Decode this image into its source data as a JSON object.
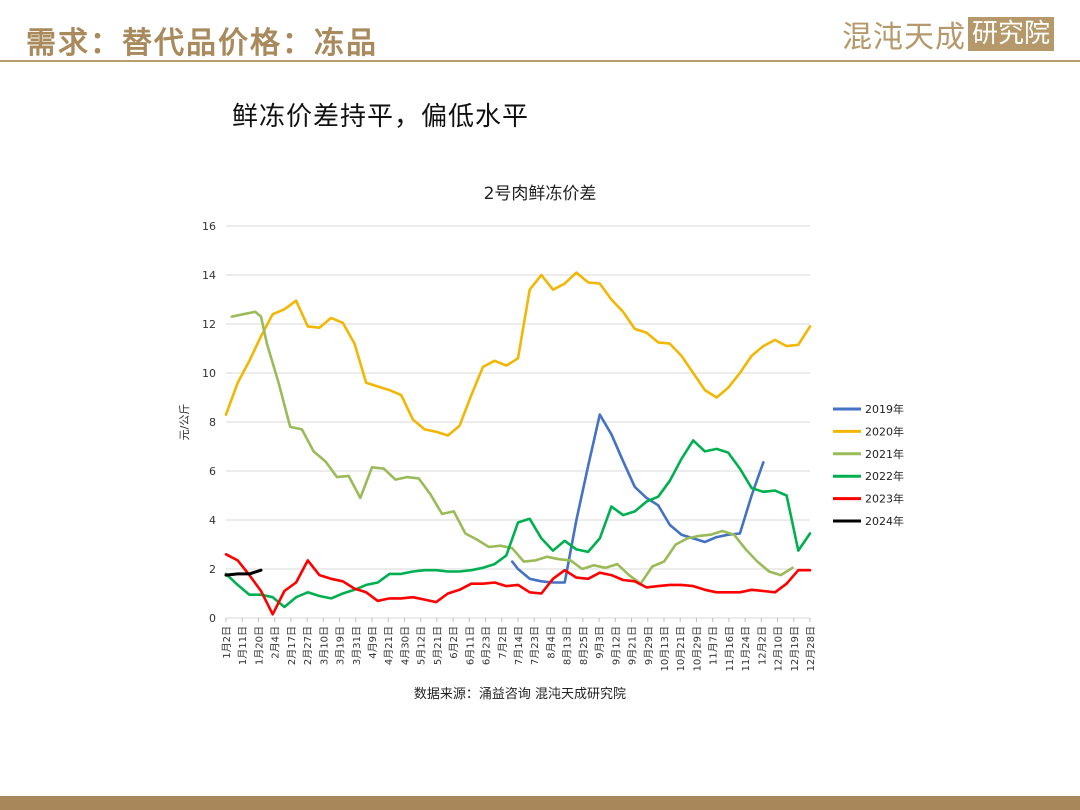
{
  "header": {
    "title": "需求：替代品价格：冻品",
    "brand_text": "混沌天成",
    "brand_box": "研究院"
  },
  "subtitle": "鲜冻价差持平，偏低水平",
  "source_note": "数据来源：涌益咨询  混沌天成研究院",
  "colors": {
    "gold": "#a88a5c",
    "header_line": "#b89d6d",
    "footer": "#a8875a"
  },
  "chart_data": {
    "type": "line",
    "title": "2号肉鲜冻价差",
    "ylabel": "元/公斤",
    "xlabel": "",
    "ylim": [
      0,
      16
    ],
    "yticks": [
      0,
      2,
      4,
      6,
      8,
      10,
      12,
      14,
      16
    ],
    "grid": true,
    "legend_position": "right",
    "x": [
      "1月2日",
      "1月11日",
      "1月20日",
      "2月4日",
      "2月17日",
      "2月27日",
      "3月10日",
      "3月19日",
      "3月31日",
      "4月9日",
      "4月21日",
      "4月30日",
      "5月12日",
      "5月21日",
      "6月2日",
      "6月11日",
      "6月23日",
      "7月2日",
      "7月14日",
      "7月23日",
      "8月4日",
      "8月13日",
      "8月25日",
      "9月3日",
      "9月12日",
      "9月21日",
      "9月29日",
      "10月13日",
      "10月21日",
      "10月29日",
      "11月7日",
      "11月16日",
      "11月24日",
      "12月2日",
      "12月10日",
      "12月19日",
      "12月28日"
    ],
    "series": [
      {
        "name": "2019年",
        "color": "#4472c4",
        "points": [
          [
            24.5,
            2.3
          ],
          [
            25,
            2.0
          ],
          [
            26,
            1.6
          ],
          [
            27,
            1.5
          ],
          [
            28,
            1.45
          ],
          [
            29,
            1.45
          ],
          [
            30,
            4.0
          ],
          [
            31,
            6.2
          ],
          [
            32,
            8.3
          ],
          [
            33,
            7.5
          ],
          [
            34,
            6.4
          ],
          [
            35,
            5.35
          ],
          [
            36,
            4.9
          ],
          [
            37,
            4.6
          ],
          [
            38,
            3.8
          ],
          [
            39,
            3.4
          ],
          [
            40,
            3.25
          ],
          [
            41,
            3.1
          ],
          [
            42,
            3.3
          ],
          [
            43,
            3.4
          ],
          [
            44,
            3.45
          ],
          [
            45,
            5.0
          ],
          [
            46,
            6.35
          ]
        ]
      },
      {
        "name": "2020年",
        "color": "#f2b705",
        "points": [
          [
            0,
            8.3
          ],
          [
            1,
            9.6
          ],
          [
            2,
            10.5
          ],
          [
            3,
            11.5
          ],
          [
            4,
            12.4
          ],
          [
            5,
            12.6
          ],
          [
            6,
            12.95
          ],
          [
            7,
            11.9
          ],
          [
            8,
            11.85
          ],
          [
            9,
            12.25
          ],
          [
            10,
            12.05
          ],
          [
            11,
            11.2
          ],
          [
            12,
            9.6
          ],
          [
            13,
            9.45
          ],
          [
            14,
            9.3
          ],
          [
            15,
            9.1
          ],
          [
            16,
            8.1
          ],
          [
            17,
            7.7
          ],
          [
            18,
            7.6
          ],
          [
            19,
            7.45
          ],
          [
            20,
            7.85
          ],
          [
            21,
            9.1
          ],
          [
            22,
            10.25
          ],
          [
            23,
            10.5
          ],
          [
            24,
            10.3
          ],
          [
            25,
            10.6
          ],
          [
            26,
            13.4
          ],
          [
            27,
            14.0
          ],
          [
            28,
            13.4
          ],
          [
            29,
            13.65
          ],
          [
            30,
            14.1
          ],
          [
            31,
            13.7
          ],
          [
            32,
            13.65
          ],
          [
            33,
            13.0
          ],
          [
            34,
            12.5
          ],
          [
            35,
            11.8
          ],
          [
            36,
            11.65
          ],
          [
            37,
            11.25
          ],
          [
            38,
            11.2
          ],
          [
            39,
            10.7
          ],
          [
            40,
            10.0
          ],
          [
            41,
            9.3
          ],
          [
            42,
            9.0
          ],
          [
            43,
            9.4
          ],
          [
            44,
            10.0
          ],
          [
            45,
            10.7
          ],
          [
            46,
            11.1
          ],
          [
            47,
            11.35
          ],
          [
            48,
            11.1
          ],
          [
            49,
            11.15
          ],
          [
            50,
            11.9
          ]
        ]
      },
      {
        "name": "2021年",
        "color": "#9bbb59",
        "points": [
          [
            0.5,
            12.3
          ],
          [
            1.5,
            12.4
          ],
          [
            2.5,
            12.5
          ],
          [
            3,
            12.3
          ],
          [
            3.5,
            11.2
          ],
          [
            4.5,
            9.6
          ],
          [
            5.5,
            7.8
          ],
          [
            6.5,
            7.7
          ],
          [
            7.5,
            6.8
          ],
          [
            8.5,
            6.4
          ],
          [
            9.5,
            5.75
          ],
          [
            10.5,
            5.8
          ],
          [
            11.5,
            4.9
          ],
          [
            12.5,
            6.15
          ],
          [
            13.5,
            6.1
          ],
          [
            14.5,
            5.65
          ],
          [
            15.5,
            5.75
          ],
          [
            16.5,
            5.7
          ],
          [
            17.5,
            5.05
          ],
          [
            18.5,
            4.25
          ],
          [
            19.5,
            4.35
          ],
          [
            20.5,
            3.45
          ],
          [
            21.5,
            3.2
          ],
          [
            22.5,
            2.9
          ],
          [
            23.5,
            2.95
          ],
          [
            24.5,
            2.85
          ],
          [
            25.5,
            2.3
          ],
          [
            26.5,
            2.35
          ],
          [
            27.5,
            2.5
          ],
          [
            28.5,
            2.4
          ],
          [
            29.5,
            2.35
          ],
          [
            30.5,
            2.0
          ],
          [
            31.5,
            2.15
          ],
          [
            32.5,
            2.05
          ],
          [
            33.5,
            2.2
          ],
          [
            34.5,
            1.75
          ],
          [
            35.5,
            1.4
          ],
          [
            36.5,
            2.1
          ],
          [
            37.5,
            2.3
          ],
          [
            38.5,
            3.0
          ],
          [
            39.5,
            3.25
          ],
          [
            40.5,
            3.35
          ],
          [
            41.5,
            3.4
          ],
          [
            42.5,
            3.55
          ],
          [
            43.5,
            3.4
          ],
          [
            44.5,
            2.8
          ],
          [
            45.5,
            2.3
          ],
          [
            46.5,
            1.9
          ],
          [
            47.5,
            1.75
          ],
          [
            48.5,
            2.05
          ]
        ]
      },
      {
        "name": "2022年",
        "color": "#00b050",
        "points": [
          [
            0,
            1.8
          ],
          [
            1,
            1.35
          ],
          [
            2,
            0.95
          ],
          [
            3,
            0.95
          ],
          [
            4,
            0.85
          ],
          [
            5,
            0.45
          ],
          [
            6,
            0.85
          ],
          [
            7,
            1.05
          ],
          [
            8,
            0.9
          ],
          [
            9,
            0.8
          ],
          [
            10,
            1.0
          ],
          [
            11,
            1.15
          ],
          [
            12,
            1.35
          ],
          [
            13,
            1.45
          ],
          [
            14,
            1.8
          ],
          [
            15,
            1.8
          ],
          [
            16,
            1.9
          ],
          [
            17,
            1.95
          ],
          [
            18,
            1.95
          ],
          [
            19,
            1.9
          ],
          [
            20,
            1.9
          ],
          [
            21,
            1.95
          ],
          [
            22,
            2.05
          ],
          [
            23,
            2.2
          ],
          [
            24,
            2.55
          ],
          [
            25,
            3.9
          ],
          [
            26,
            4.05
          ],
          [
            27,
            3.25
          ],
          [
            28,
            2.75
          ],
          [
            29,
            3.15
          ],
          [
            30,
            2.8
          ],
          [
            31,
            2.7
          ],
          [
            32,
            3.25
          ],
          [
            33,
            4.55
          ],
          [
            34,
            4.2
          ],
          [
            35,
            4.35
          ],
          [
            36,
            4.75
          ],
          [
            37,
            4.95
          ],
          [
            38,
            5.6
          ],
          [
            39,
            6.5
          ],
          [
            40,
            7.25
          ],
          [
            41,
            6.8
          ],
          [
            42,
            6.9
          ],
          [
            43,
            6.75
          ],
          [
            44,
            6.1
          ],
          [
            45,
            5.3
          ],
          [
            46,
            5.15
          ],
          [
            47,
            5.2
          ],
          [
            48,
            5.0
          ],
          [
            49,
            2.75
          ],
          [
            50,
            3.45
          ]
        ]
      },
      {
        "name": "2023年",
        "color": "#ff0000",
        "points": [
          [
            0,
            2.6
          ],
          [
            1,
            2.35
          ],
          [
            2,
            1.75
          ],
          [
            3,
            1.1
          ],
          [
            4,
            0.15
          ],
          [
            5,
            1.1
          ],
          [
            6,
            1.45
          ],
          [
            7,
            2.35
          ],
          [
            8,
            1.75
          ],
          [
            9,
            1.6
          ],
          [
            10,
            1.5
          ],
          [
            11,
            1.2
          ],
          [
            12,
            1.05
          ],
          [
            13,
            0.7
          ],
          [
            14,
            0.8
          ],
          [
            15,
            0.8
          ],
          [
            16,
            0.85
          ],
          [
            17,
            0.75
          ],
          [
            18,
            0.65
          ],
          [
            19,
            1.0
          ],
          [
            20,
            1.15
          ],
          [
            21,
            1.4
          ],
          [
            22,
            1.4
          ],
          [
            23,
            1.45
          ],
          [
            24,
            1.3
          ],
          [
            25,
            1.35
          ],
          [
            26,
            1.05
          ],
          [
            27,
            1.0
          ],
          [
            28,
            1.6
          ],
          [
            29,
            1.95
          ],
          [
            30,
            1.65
          ],
          [
            31,
            1.6
          ],
          [
            32,
            1.85
          ],
          [
            33,
            1.75
          ],
          [
            34,
            1.55
          ],
          [
            35,
            1.5
          ],
          [
            36,
            1.25
          ],
          [
            37,
            1.3
          ],
          [
            38,
            1.35
          ],
          [
            39,
            1.35
          ],
          [
            40,
            1.3
          ],
          [
            41,
            1.15
          ],
          [
            42,
            1.05
          ],
          [
            43,
            1.05
          ],
          [
            44,
            1.05
          ],
          [
            45,
            1.15
          ],
          [
            46,
            1.1
          ],
          [
            47,
            1.05
          ],
          [
            48,
            1.4
          ],
          [
            49,
            1.95
          ],
          [
            50,
            1.95
          ]
        ]
      },
      {
        "name": "2024年",
        "color": "#000000",
        "points": [
          [
            0,
            1.75
          ],
          [
            1,
            1.8
          ],
          [
            2,
            1.8
          ],
          [
            3,
            1.95
          ]
        ]
      }
    ]
  }
}
